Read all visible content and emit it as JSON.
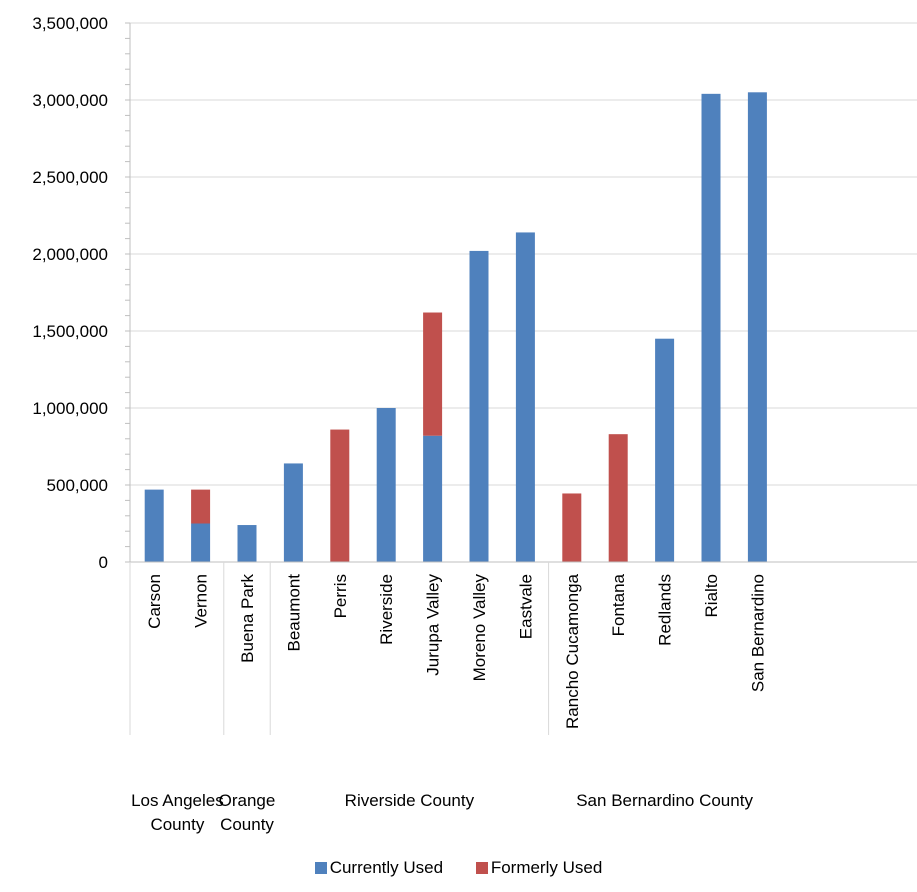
{
  "chart_data": {
    "type": "bar",
    "stacked": true,
    "ylim": [
      0,
      3500000
    ],
    "yticks": [
      "0",
      "500,000",
      "1,000,000",
      "1,500,000",
      "2,000,000",
      "2,500,000",
      "3,000,000",
      "3,500,000"
    ],
    "gridlines": true,
    "legend_position": "bottom",
    "groups": [
      {
        "label": "Los Angeles County",
        "categories": [
          "Carson",
          "Vernon"
        ]
      },
      {
        "label": "Orange County",
        "categories": [
          "Buena Park"
        ]
      },
      {
        "label": "Riverside County",
        "categories": [
          "Beaumont",
          "Perris",
          "Riverside",
          "Jurupa Valley",
          "Moreno Valley",
          "Eastvale"
        ]
      },
      {
        "label": "San Bernardino County",
        "categories": [
          "Rancho Cucamonga",
          "Fontana",
          "Redlands",
          "Rialto",
          "San Bernardino"
        ]
      }
    ],
    "categories": [
      "Carson",
      "Vernon",
      "Buena Park",
      "Beaumont",
      "Perris",
      "Riverside",
      "Jurupa Valley",
      "Moreno Valley",
      "Eastvale",
      "Rancho Cucamonga",
      "Fontana",
      "Redlands",
      "Rialto",
      "San Bernardino"
    ],
    "series": [
      {
        "name": "Currently Used",
        "color": "#4F81BD",
        "values": [
          470000,
          250000,
          240000,
          640000,
          0,
          1000000,
          820000,
          2020000,
          2140000,
          0,
          0,
          1450000,
          3040000,
          3050000
        ]
      },
      {
        "name": "Formerly Used",
        "color": "#C0504D",
        "values": [
          0,
          220000,
          0,
          0,
          860000,
          0,
          800000,
          0,
          0,
          445000,
          830000,
          0,
          0,
          0
        ]
      }
    ]
  }
}
